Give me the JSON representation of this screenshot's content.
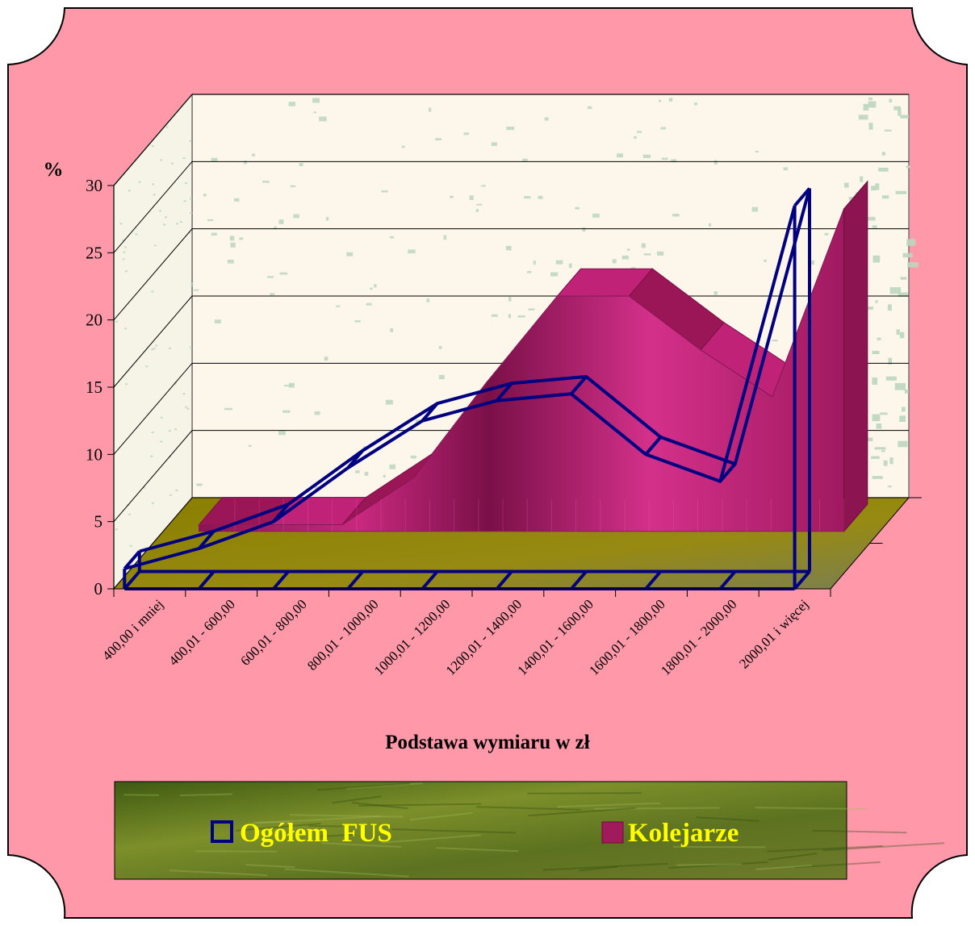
{
  "chart_data": {
    "type": "area",
    "style": "3d",
    "title": "",
    "ylabel": "%",
    "xlabel": "Podstawa wymiaru w zł",
    "ylim": [
      0,
      30
    ],
    "yticks": [
      0,
      5,
      10,
      15,
      20,
      25,
      30
    ],
    "grid": true,
    "legend_position": "bottom",
    "categories": [
      "400,00 i mniej",
      "400,01 - 600,00",
      "600,01 - 800,00",
      "800,01 - 1000,00",
      "1000,01 - 1200,00",
      "1200,01 - 1400,00",
      "1400,01 - 1600,00",
      "1600,01 - 1800,00",
      "1800,01 - 2000,00",
      "2000,01 i więcej"
    ],
    "series": [
      {
        "name": "Ogółem  FUS",
        "values": [
          1.5,
          3,
          5,
          9,
          12.5,
          14,
          14.5,
          10,
          8,
          28.5
        ]
      },
      {
        "name": "Kolejarze",
        "values": [
          0.5,
          0.5,
          0.5,
          4,
          11,
          17.5,
          17.5,
          13.5,
          10,
          24
        ]
      }
    ]
  },
  "colors": {
    "background": "#ff99aa",
    "wall": "#fcf7ea",
    "wall_pattern": "#bcd6be",
    "floor": "#8c8000",
    "fus_line": "#000080",
    "kolejarze_fill": "#a01a5c",
    "kolejarze_light": "#e0309a",
    "legend_text": "#ffff00",
    "legend_box": "#5a6a1a"
  }
}
